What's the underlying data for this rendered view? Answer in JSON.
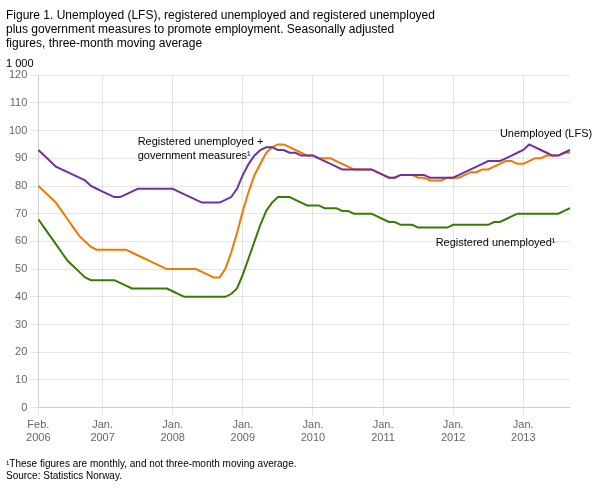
{
  "chart_data": {
    "type": "line",
    "title": "Figure 1. Unemployed (LFS), registered unemployed and registered unemployed\nplus government measures to promote employment. Seasonally adjusted\nfigures, three-month moving average",
    "ylabel": "1 000",
    "footnote": "¹These figures are monthly, and not three-month moving average.\nSource: Statistics Norway.",
    "categories": [
      "Feb.\n2006",
      null,
      null,
      null,
      null,
      null,
      null,
      null,
      null,
      null,
      null,
      "Jan.\n2007",
      null,
      null,
      null,
      null,
      null,
      null,
      null,
      null,
      null,
      null,
      null,
      "Jan.\n2008",
      null,
      null,
      null,
      null,
      null,
      null,
      null,
      null,
      null,
      null,
      null,
      "Jan.\n2009",
      null,
      null,
      null,
      null,
      null,
      null,
      null,
      null,
      null,
      null,
      null,
      "Jan.\n2010",
      null,
      null,
      null,
      null,
      null,
      null,
      null,
      null,
      null,
      null,
      null,
      "Jan.\n2011",
      null,
      null,
      null,
      null,
      null,
      null,
      null,
      null,
      null,
      null,
      null,
      "Jan.\n2012",
      null,
      null,
      null,
      null,
      null,
      null,
      null,
      null,
      null,
      null,
      null,
      "Jan.\n2013",
      null,
      null,
      null,
      null,
      null,
      null,
      null,
      null
    ],
    "series": [
      {
        "name": "Unemployed (LFS)",
        "color": "#7030a0",
        "values": [
          93,
          91,
          89,
          87,
          86,
          85,
          84,
          83,
          82,
          80,
          79,
          78,
          77,
          76,
          76,
          77,
          78,
          79,
          79,
          79,
          79,
          79,
          79,
          79,
          78,
          77,
          76,
          75,
          74,
          74,
          74,
          74,
          75,
          76,
          79,
          84,
          88,
          91,
          93,
          94,
          94,
          93,
          93,
          92,
          92,
          91,
          91,
          91,
          90,
          89,
          88,
          87,
          86,
          86,
          86,
          86,
          86,
          86,
          85,
          84,
          83,
          83,
          84,
          84,
          84,
          84,
          84,
          83,
          83,
          83,
          83,
          83,
          84,
          85,
          86,
          87,
          88,
          89,
          89,
          89,
          90,
          91,
          92,
          93,
          95,
          94,
          93,
          92,
          91,
          91,
          92,
          93
        ]
      },
      {
        "name": "Registered unemployed +\ngovernment measures¹",
        "color": "#f07800",
        "values": [
          80,
          78,
          76,
          74,
          71,
          68,
          65,
          62,
          60,
          58,
          57,
          57,
          57,
          57,
          57,
          57,
          56,
          55,
          54,
          53,
          52,
          51,
          50,
          50,
          50,
          50,
          50,
          50,
          49,
          48,
          47,
          47,
          50,
          56,
          63,
          71,
          78,
          84,
          88,
          92,
          94,
          95,
          95,
          94,
          93,
          92,
          91,
          91,
          90,
          90,
          90,
          89,
          88,
          87,
          86,
          86,
          86,
          86,
          85,
          84,
          83,
          83,
          84,
          84,
          84,
          83,
          83,
          82,
          82,
          82,
          83,
          83,
          83,
          84,
          85,
          85,
          86,
          86,
          87,
          88,
          89,
          89,
          88,
          88,
          89,
          90,
          90,
          91,
          91,
          91,
          92,
          92
        ]
      },
      {
        "name": "Registered unemployed¹",
        "color": "#3a7a00",
        "values": [
          68,
          65,
          62,
          59,
          56,
          53,
          51,
          49,
          47,
          46,
          46,
          46,
          46,
          46,
          45,
          44,
          43,
          43,
          43,
          43,
          43,
          43,
          43,
          42,
          41,
          40,
          40,
          40,
          40,
          40,
          40,
          40,
          40,
          41,
          43,
          48,
          54,
          60,
          66,
          71,
          74,
          76,
          76,
          76,
          75,
          74,
          73,
          73,
          73,
          72,
          72,
          72,
          71,
          71,
          70,
          70,
          70,
          70,
          69,
          68,
          67,
          67,
          66,
          66,
          66,
          65,
          65,
          65,
          65,
          65,
          65,
          66,
          66,
          66,
          66,
          66,
          66,
          66,
          67,
          67,
          68,
          69,
          70,
          70,
          70,
          70,
          70,
          70,
          70,
          70,
          71,
          72
        ]
      }
    ],
    "annotations": [
      {
        "text": "Unemployed (LFS)",
        "x": 79,
        "y": 96
      },
      {
        "text": "Registered unemployed +\ngovernment measures¹",
        "x": 17,
        "y": 88
      },
      {
        "text": "Registered unemployed¹",
        "x": 68,
        "y": 62
      }
    ],
    "ylim": [
      0,
      120
    ],
    "yticks": [
      0,
      10,
      20,
      30,
      40,
      50,
      60,
      70,
      80,
      90,
      100,
      110,
      120
    ],
    "grid": true
  }
}
